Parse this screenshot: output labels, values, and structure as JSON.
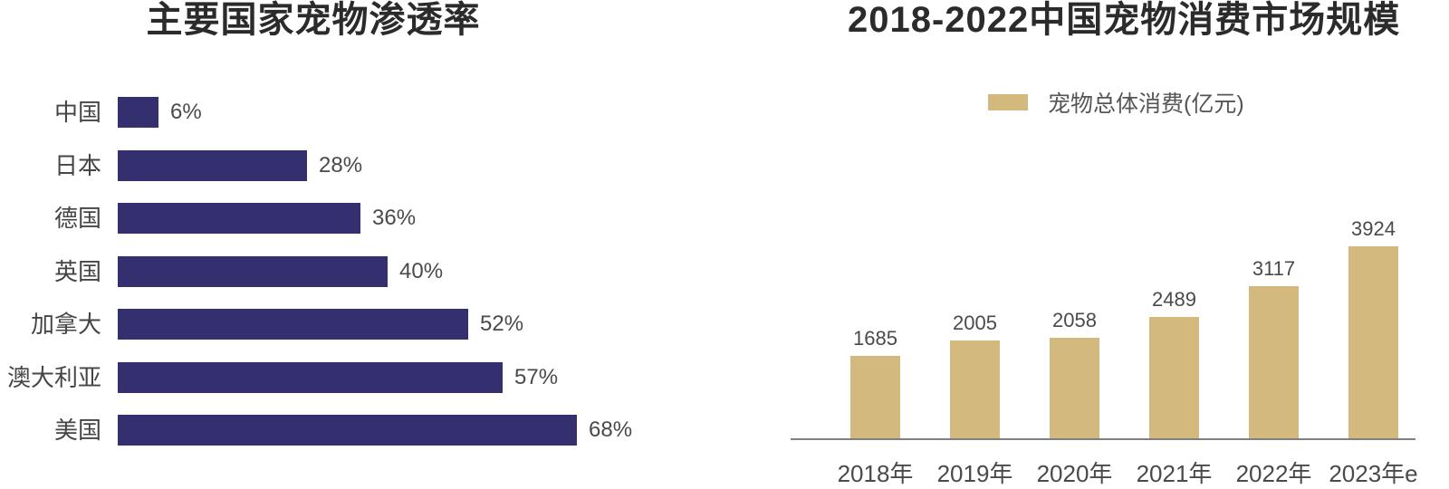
{
  "colors": {
    "navy": "#342f6e",
    "gold": "#d3b97d",
    "title": "#2b2b2b",
    "label": "#4a4a4a",
    "axis": "#808080",
    "background": "#ffffff"
  },
  "chart_data": [
    {
      "type": "bar",
      "orientation": "horizontal",
      "title": "主要国家宠物渗透率",
      "categories": [
        "中国",
        "日本",
        "德国",
        "英国",
        "加拿大",
        "澳大利亚",
        "美国"
      ],
      "values": [
        6,
        28,
        36,
        40,
        52,
        57,
        68
      ],
      "value_labels": [
        "6%",
        "28%",
        "36%",
        "40%",
        "52%",
        "57%",
        "68%"
      ],
      "unit": "%",
      "xlim": [
        0,
        100
      ],
      "grid": false,
      "legend_position": "none",
      "bar_color": "#342f6e",
      "text_color": "#4a4a4a"
    },
    {
      "type": "bar",
      "orientation": "vertical",
      "title": "2018-2022中国宠物消费市场规模",
      "categories": [
        "2018年",
        "2019年",
        "2020年",
        "2021年",
        "2022年",
        "2023年e"
      ],
      "values": [
        1685,
        2005,
        2058,
        2489,
        3117,
        3924
      ],
      "series": [
        {
          "name": "宠物总体消费(亿元)",
          "values": [
            1685,
            2005,
            2058,
            2489,
            3117,
            3924
          ]
        }
      ],
      "legend": [
        {
          "label": "宠物总体消费(亿元)",
          "color": "#d3b97d"
        }
      ],
      "legend_position": "top",
      "ylim": [
        0,
        4200
      ],
      "grid": false,
      "bar_color": "#d3b97d",
      "axis_color": "#808080",
      "text_color": "#4a4a4a"
    }
  ]
}
